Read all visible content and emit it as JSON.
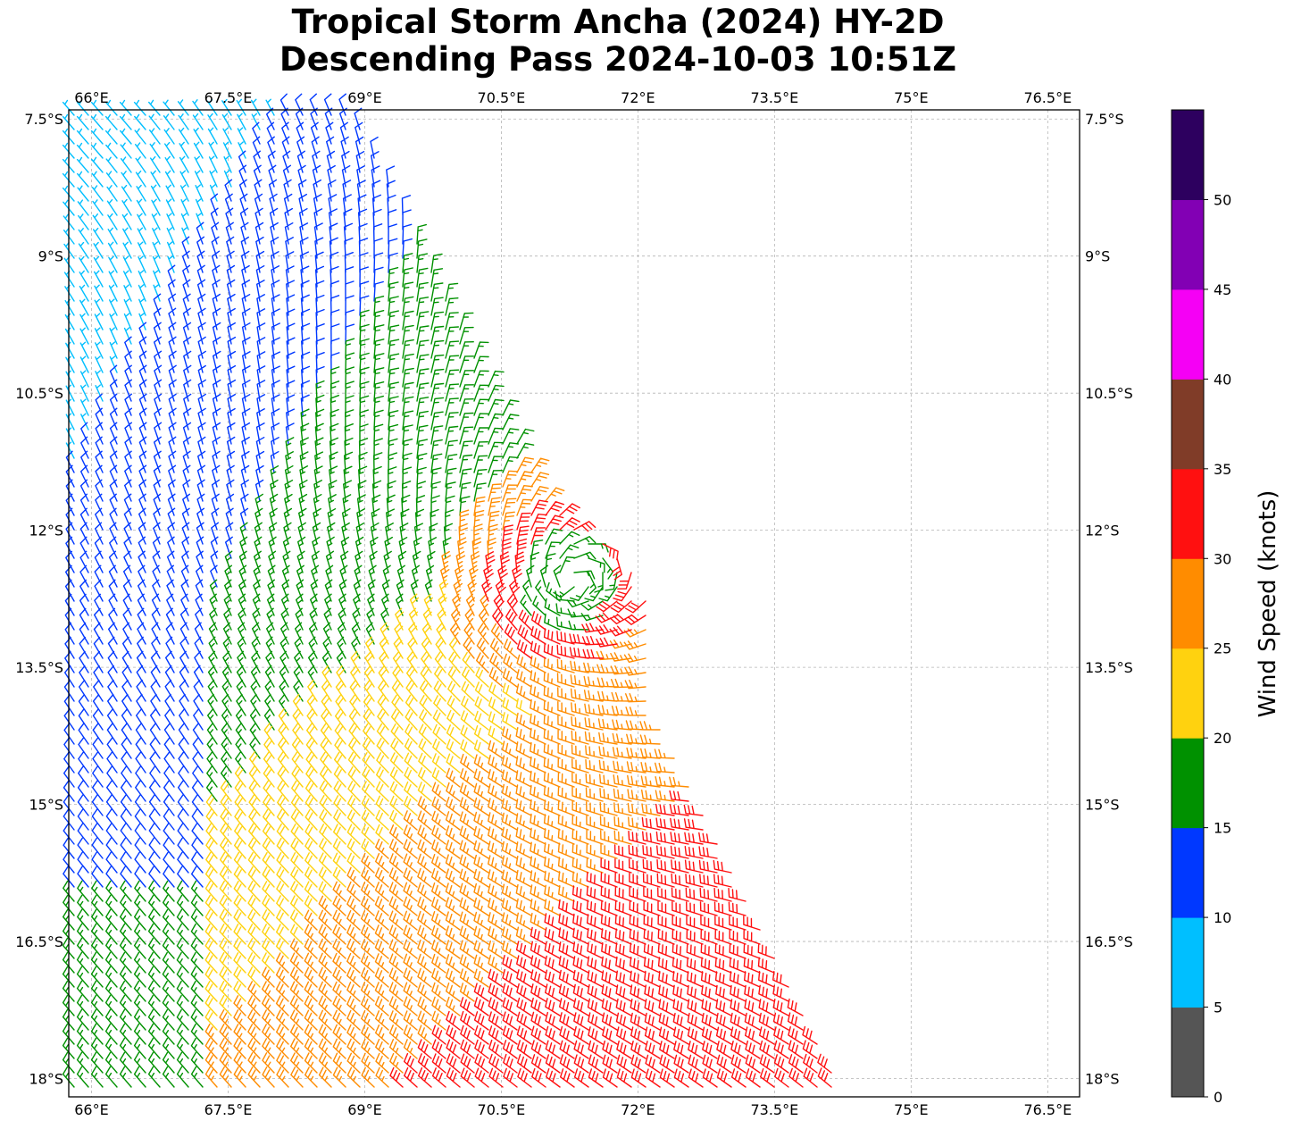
{
  "title": {
    "line1": "Tropical Storm Ancha (2024) HY-2D",
    "line2": "Descending Pass 2024-10-03 10:51Z"
  },
  "map": {
    "lon_range": [
      65.75,
      76.85
    ],
    "lat_range": [
      -18.2,
      -7.4
    ],
    "lon_ticks": [
      {
        "value": 66.0,
        "label": "66°E"
      },
      {
        "value": 67.5,
        "label": "67.5°E"
      },
      {
        "value": 69.0,
        "label": "69°E"
      },
      {
        "value": 70.5,
        "label": "70.5°E"
      },
      {
        "value": 72.0,
        "label": "72°E"
      },
      {
        "value": 73.5,
        "label": "73.5°E"
      },
      {
        "value": 75.0,
        "label": "75°E"
      },
      {
        "value": 76.5,
        "label": "76.5°E"
      }
    ],
    "lat_ticks": [
      {
        "value": -7.5,
        "label": "7.5°S"
      },
      {
        "value": -9.0,
        "label": "9°S"
      },
      {
        "value": -10.5,
        "label": "10.5°S"
      },
      {
        "value": -12.0,
        "label": "12°S"
      },
      {
        "value": -13.5,
        "label": "13.5°S"
      },
      {
        "value": -15.0,
        "label": "15°S"
      },
      {
        "value": -16.5,
        "label": "16.5°S"
      },
      {
        "value": -18.0,
        "label": "18°S"
      }
    ],
    "gridlines": true,
    "storm_center": {
      "lon": 71.25,
      "lat": -12.6
    }
  },
  "colorbar": {
    "label": "Wind Speed (knots)",
    "bins": [
      {
        "min": 0,
        "max": 5,
        "color": "#555555"
      },
      {
        "min": 5,
        "max": 10,
        "color": "#00bfff"
      },
      {
        "min": 10,
        "max": 15,
        "color": "#0038ff"
      },
      {
        "min": 15,
        "max": 20,
        "color": "#009100"
      },
      {
        "min": 20,
        "max": 25,
        "color": "#ffd20f"
      },
      {
        "min": 25,
        "max": 30,
        "color": "#ff8c00"
      },
      {
        "min": 30,
        "max": 35,
        "color": "#ff1010"
      },
      {
        "min": 35,
        "max": 40,
        "color": "#803c28"
      },
      {
        "min": 40,
        "max": 45,
        "color": "#f500f5"
      },
      {
        "min": 45,
        "max": 50,
        "color": "#8200b4"
      },
      {
        "min": 50,
        "max": 55,
        "color": "#2d005f"
      }
    ],
    "ticks": [
      "0",
      "5",
      "10",
      "15",
      "20",
      "25",
      "30",
      "35",
      "40",
      "45",
      "50"
    ]
  }
}
